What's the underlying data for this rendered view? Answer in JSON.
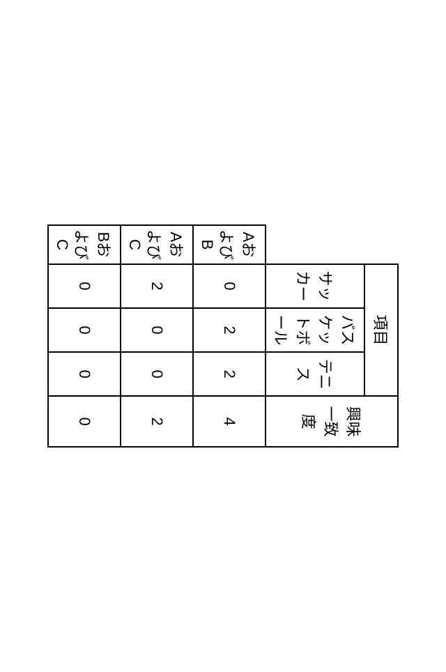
{
  "table": {
    "header_group": "項目",
    "match_header": "興味一致度",
    "sport_columns": [
      "サッカー",
      "バスケットボール",
      "テニス"
    ],
    "rows": [
      {
        "label": "AおよびB",
        "values": [
          "0",
          "2",
          "2"
        ],
        "match": "4"
      },
      {
        "label": "AおよびC",
        "values": [
          "2",
          "0",
          "0"
        ],
        "match": "2"
      },
      {
        "label": "BおよびC",
        "values": [
          "0",
          "0",
          "0"
        ],
        "match": "0"
      }
    ],
    "colors": {
      "border": "#000000",
      "background": "#ffffff",
      "text": "#000000"
    },
    "font_size_pt": 16
  }
}
